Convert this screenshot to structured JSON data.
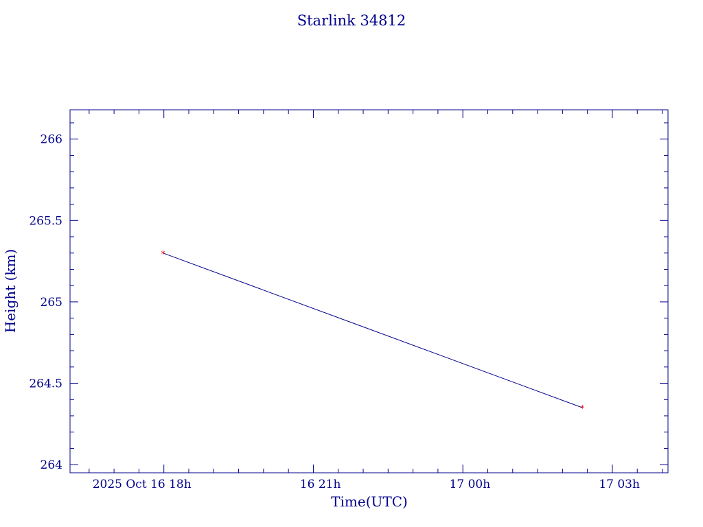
{
  "chart_data": {
    "type": "line",
    "title": "Starlink 34812",
    "xlabel": "Time(UTC)",
    "ylabel": "Height (km)",
    "xlim": [
      "2025-10-16T16:07",
      "2025-10-17T04:07"
    ],
    "ylim": [
      263.95,
      266.18
    ],
    "x_ticks": [
      {
        "x": "2025-10-16T18:00",
        "label": "2025 Oct 16  18h"
      },
      {
        "x": "2025-10-16T21:00",
        "label": "16  21h"
      },
      {
        "x": "2025-10-17T00:00",
        "label": "17  00h"
      },
      {
        "x": "2025-10-17T03:00",
        "label": "17  03h"
      }
    ],
    "y_ticks": [
      {
        "y": 264,
        "label": "264"
      },
      {
        "y": 264.5,
        "label": "264.5"
      },
      {
        "y": 265,
        "label": "265"
      },
      {
        "y": 265.5,
        "label": "265.5"
      },
      {
        "y": 266,
        "label": "266"
      }
    ],
    "series": [
      {
        "x": [
          "2025-10-16T17:59",
          "2025-10-17T02:24"
        ],
        "y": [
          265.3,
          264.35
        ]
      }
    ],
    "grid": false,
    "colors": {
      "axes": "#00008b",
      "line": "#00008b",
      "markers": "#ff0000"
    }
  }
}
